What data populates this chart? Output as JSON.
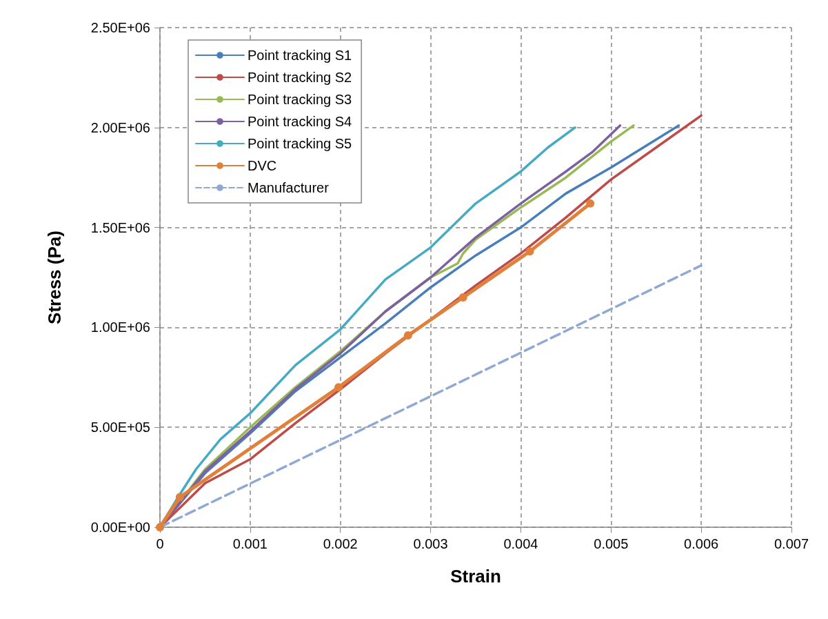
{
  "chart_data": {
    "type": "line",
    "xlabel": "Strain",
    "ylabel": "Stress (Pa)",
    "xlim": [
      0,
      0.007
    ],
    "xticks": [
      0,
      0.001,
      0.002,
      0.003,
      0.004,
      0.005,
      0.006,
      0.007
    ],
    "ylim": [
      0,
      2500000
    ],
    "yticks": [
      {
        "value": 0,
        "label": "0.00E+00"
      },
      {
        "value": 500000,
        "label": "5.00E+05"
      },
      {
        "value": 1000000,
        "label": "1.00E+06"
      },
      {
        "value": 1500000,
        "label": "1.50E+06"
      },
      {
        "value": 2000000,
        "label": "2.00E+06"
      },
      {
        "value": 2500000,
        "label": "2.50E+06"
      }
    ],
    "grid": true,
    "legend": "top left",
    "series": [
      {
        "name": "Point tracking S1",
        "color": "#4a7ebb",
        "marker": "none",
        "line_style": "solid",
        "x": [
          0,
          0.0005,
          0.001,
          0.0015,
          0.002,
          0.0025,
          0.003,
          0.0035,
          0.004,
          0.0045,
          0.005,
          0.0055,
          0.00575
        ],
        "values": [
          0,
          270000,
          470000,
          680000,
          850000,
          1020000,
          1200000,
          1360000,
          1500000,
          1670000,
          1800000,
          1940000,
          2010000
        ]
      },
      {
        "name": "Point tracking S2",
        "color": "#be4b48",
        "marker": "none",
        "line_style": "solid",
        "x": [
          0,
          0.0005,
          0.001,
          0.0015,
          0.002,
          0.0025,
          0.003,
          0.0035,
          0.004,
          0.0045,
          0.005,
          0.0055,
          0.006
        ],
        "values": [
          0,
          220000,
          340000,
          520000,
          690000,
          870000,
          1040000,
          1210000,
          1370000,
          1550000,
          1740000,
          1900000,
          2060000
        ]
      },
      {
        "name": "Point tracking S3",
        "color": "#98b954",
        "marker": "none",
        "line_style": "solid",
        "x": [
          0,
          0.0005,
          0.001,
          0.0015,
          0.002,
          0.0025,
          0.003,
          0.0033,
          0.00336,
          0.0035,
          0.004,
          0.0045,
          0.005,
          0.00525
        ],
        "values": [
          0,
          290000,
          500000,
          700000,
          880000,
          1080000,
          1250000,
          1320000,
          1370000,
          1440000,
          1600000,
          1750000,
          1930000,
          2010000
        ]
      },
      {
        "name": "Point tracking S4",
        "color": "#7d60a0",
        "marker": "none",
        "line_style": "solid",
        "x": [
          0,
          0.0005,
          0.001,
          0.0015,
          0.002,
          0.0025,
          0.003,
          0.0035,
          0.004,
          0.0045,
          0.0048,
          0.0051
        ],
        "values": [
          0,
          280000,
          480000,
          690000,
          870000,
          1080000,
          1250000,
          1450000,
          1620000,
          1780000,
          1880000,
          2010000
        ]
      },
      {
        "name": "Point tracking S5",
        "color": "#46aac5",
        "marker": "none",
        "line_style": "solid",
        "x": [
          0,
          0.0002,
          0.0004,
          0.00067,
          0.001,
          0.0015,
          0.002,
          0.0025,
          0.003,
          0.0035,
          0.004,
          0.0043,
          0.0046
        ],
        "values": [
          0,
          150000,
          290000,
          440000,
          570000,
          810000,
          990000,
          1240000,
          1400000,
          1620000,
          1780000,
          1900000,
          2000000
        ]
      },
      {
        "name": "DVC",
        "color": "#e0803a",
        "marker": "circle",
        "line_style": "solid",
        "x": [
          0,
          0.00022,
          0.00198,
          0.00275,
          0.00336,
          0.0041,
          0.00477
        ],
        "values": [
          0,
          150000,
          700000,
          960000,
          1150000,
          1380000,
          1620000
        ]
      },
      {
        "name": "Manufacturer",
        "color": "#8fa9d4",
        "marker": "none",
        "line_style": "dashed",
        "x": [
          0,
          0.006
        ],
        "values": [
          0,
          1310000
        ]
      }
    ]
  }
}
